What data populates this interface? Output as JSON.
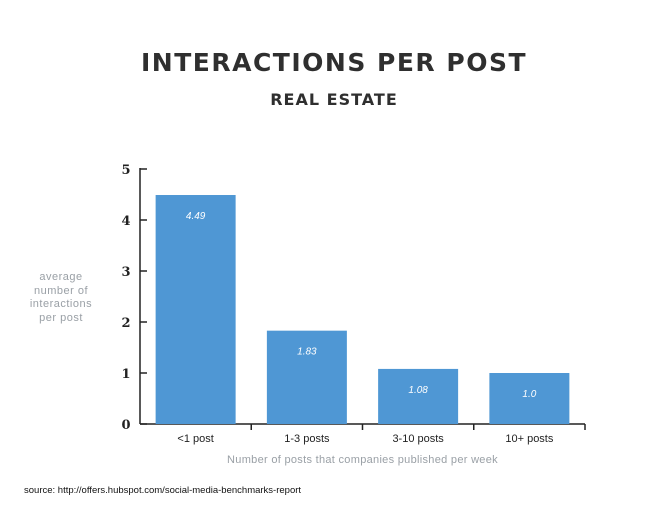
{
  "chart_data": {
    "type": "bar",
    "title": "INTERACTIONS PER POST",
    "subtitle": "REAL ESTATE",
    "ylabel": "average number of interactions per post",
    "xlabel": "Number of posts that companies published per week",
    "categories": [
      "<1 post",
      "1-3 posts",
      "3-10 posts",
      "10+ posts"
    ],
    "values": [
      4.49,
      1.83,
      1.08,
      1.0
    ],
    "data_labels": [
      "4.49",
      "1.83",
      "1.08",
      "1.0"
    ],
    "y_ticks": [
      0,
      1,
      2,
      3,
      4,
      5
    ],
    "ylim": [
      0,
      5
    ],
    "grid": false,
    "legend": "none",
    "bar_color": "#4f97d4",
    "axis_color": "#222222"
  },
  "source": "source: http://offers.hubspot.com/social-media-benchmarks-report"
}
